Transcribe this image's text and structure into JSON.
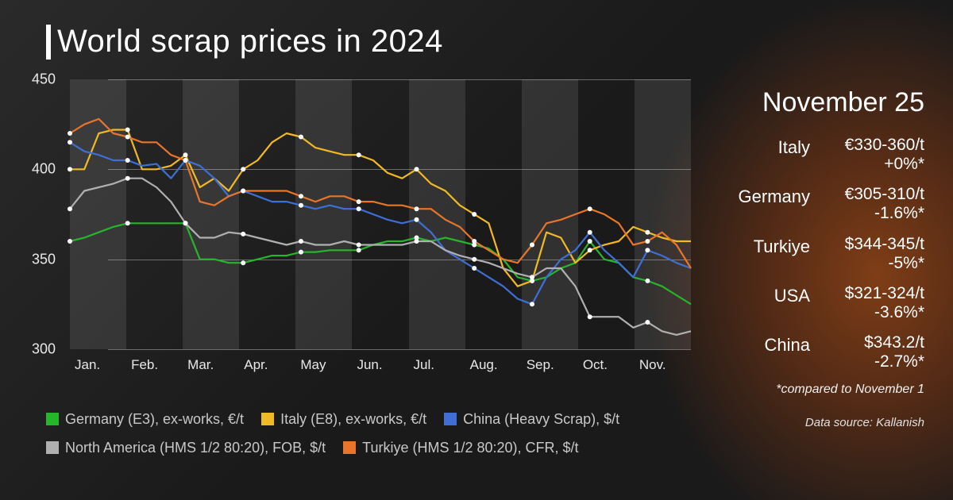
{
  "title": "World scrap prices in 2024",
  "chart": {
    "type": "line",
    "ylim": [
      300,
      450
    ],
    "yticks": [
      300,
      350,
      400,
      450
    ],
    "ytick_labels": [
      "300",
      "350",
      "400",
      "450"
    ],
    "months": [
      "Jan.",
      "Feb.",
      "Mar.",
      "Apr.",
      "May",
      "Jun.",
      "Jul.",
      "Aug.",
      "Sep.",
      "Oct.",
      "Nov."
    ],
    "n_points": 44,
    "month_markers_x": [
      0,
      4,
      8,
      12,
      16,
      20,
      24,
      28,
      32,
      36,
      40
    ],
    "background": "#222222",
    "grid_color": "rgba(255,255,255,0.35)",
    "band_color": "rgba(255,255,255,0.10)",
    "axis_font_color": "#e8e8e8",
    "axis_fontsize": 17,
    "line_width": 2.2,
    "marker_radius": 3,
    "series": [
      {
        "id": "germany-e3",
        "label": "Germany (E3), ex-works, €/t",
        "color": "#26b52b",
        "values": [
          360,
          362,
          365,
          368,
          370,
          370,
          370,
          370,
          370,
          350,
          350,
          348,
          348,
          350,
          352,
          352,
          354,
          354,
          355,
          355,
          355,
          358,
          360,
          360,
          362,
          360,
          362,
          360,
          358,
          356,
          350,
          340,
          338,
          340,
          345,
          348,
          360,
          350,
          348,
          340,
          338,
          335,
          330,
          325
        ]
      },
      {
        "id": "italy-e8",
        "label": "Italy (E8), ex-works, €/t",
        "color": "#f0b925",
        "values": [
          400,
          400,
          420,
          422,
          422,
          400,
          400,
          402,
          408,
          390,
          395,
          388,
          400,
          405,
          415,
          420,
          418,
          412,
          410,
          408,
          408,
          405,
          398,
          395,
          400,
          392,
          388,
          380,
          375,
          370,
          345,
          335,
          338,
          365,
          362,
          348,
          355,
          358,
          360,
          368,
          365,
          362,
          360,
          360
        ]
      },
      {
        "id": "china-heavy",
        "label": "China (Heavy Scrap), $/t",
        "color": "#3e6fd6",
        "values": [
          415,
          410,
          408,
          405,
          405,
          402,
          403,
          395,
          405,
          402,
          395,
          385,
          388,
          385,
          382,
          382,
          380,
          378,
          380,
          378,
          378,
          375,
          372,
          370,
          372,
          365,
          355,
          350,
          345,
          340,
          335,
          328,
          325,
          340,
          350,
          355,
          365,
          355,
          348,
          340,
          355,
          352,
          348,
          345
        ]
      },
      {
        "id": "north-america",
        "label": "North America (HMS 1/2 80:20), FOB, $/t",
        "color": "#b0b0b0",
        "values": [
          378,
          388,
          390,
          392,
          395,
          395,
          390,
          382,
          370,
          362,
          362,
          365,
          364,
          362,
          360,
          358,
          360,
          358,
          358,
          360,
          358,
          358,
          358,
          358,
          360,
          360,
          355,
          352,
          350,
          348,
          345,
          342,
          340,
          345,
          345,
          335,
          318,
          318,
          318,
          312,
          315,
          310,
          308,
          310
        ]
      },
      {
        "id": "turkiye",
        "label": "Turkiye (HMS 1/2 80:20), CFR, $/t",
        "color": "#e8752a",
        "values": [
          420,
          425,
          428,
          420,
          418,
          415,
          415,
          408,
          405,
          382,
          380,
          385,
          388,
          388,
          388,
          388,
          385,
          382,
          385,
          385,
          382,
          382,
          380,
          380,
          378,
          378,
          372,
          368,
          360,
          355,
          350,
          348,
          358,
          370,
          372,
          375,
          378,
          375,
          370,
          358,
          360,
          365,
          358,
          345
        ]
      }
    ]
  },
  "legend": {
    "font_color": "#c8c8c8",
    "fontsize": 18
  },
  "side": {
    "date": "November 25",
    "stats": [
      {
        "label": "Italy",
        "value": "€330-360/t",
        "change": "+0%*"
      },
      {
        "label": "Germany",
        "value": "€305-310/t",
        "change": "-1.6%*"
      },
      {
        "label": "Turkiye",
        "value": "$344-345/t",
        "change": "-5%*"
      },
      {
        "label": "USA",
        "value": "$321-324/t",
        "change": "-3.6%*"
      },
      {
        "label": "China",
        "value": "$343.2/t",
        "change": "-2.7%*"
      }
    ],
    "footnote": "*compared to November 1",
    "source": "Data source: Kallanish"
  }
}
